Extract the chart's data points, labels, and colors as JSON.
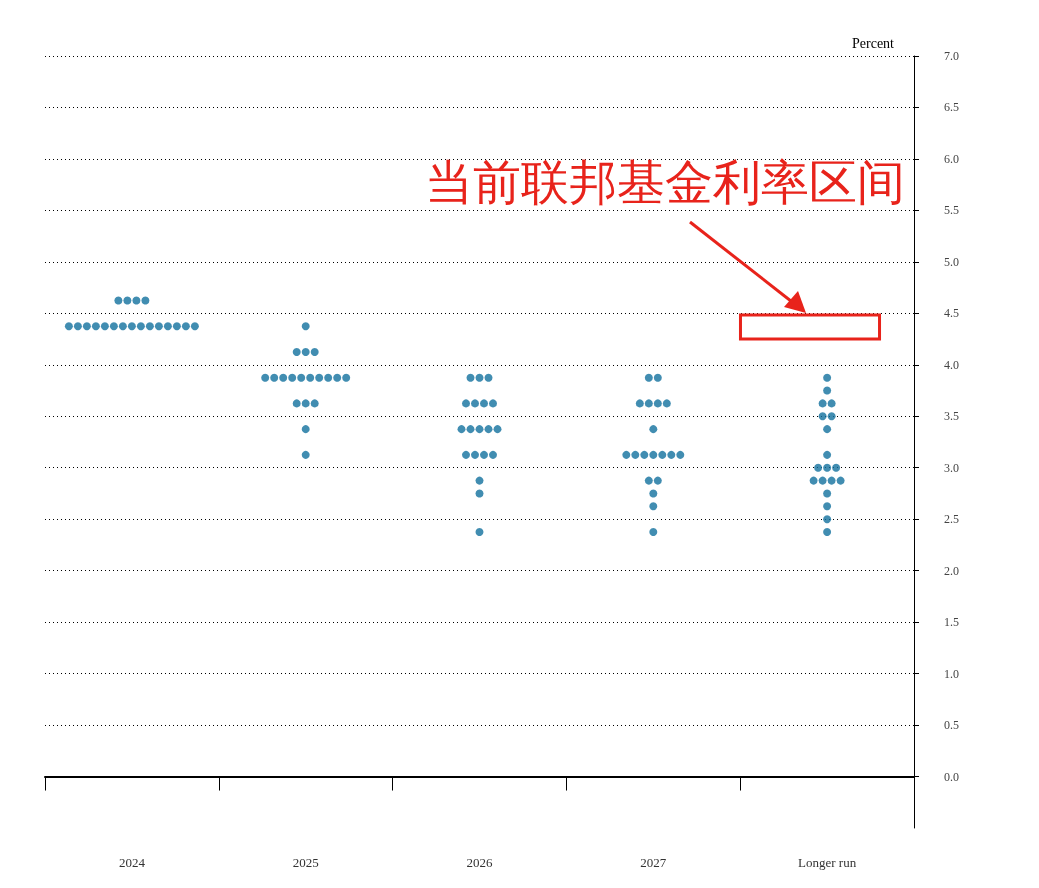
{
  "chart_data": {
    "type": "scatter",
    "ylabel": "Percent",
    "categories": [
      "2024",
      "2025",
      "2026",
      "2027",
      "Longer run"
    ],
    "series": [
      {
        "color": "#12719e",
        "values": [
          4.625,
          4.375,
          3.875,
          3.875,
          3.875
        ]
      },
      {
        "color": "#12719e",
        "values": [
          4.625,
          4.125,
          3.875,
          3.875,
          3.75
        ]
      },
      {
        "color": "#12719e",
        "values": [
          4.625,
          4.125,
          3.875,
          3.625,
          3.625
        ]
      },
      {
        "color": "#12719e",
        "values": [
          4.625,
          4.125,
          3.625,
          3.625,
          3.625
        ]
      },
      {
        "color": "#12719e",
        "values": [
          4.375,
          3.875,
          3.625,
          3.625,
          3.5
        ]
      },
      {
        "color": "#12719e",
        "values": [
          4.375,
          3.875,
          3.625,
          3.625,
          3.5
        ]
      },
      {
        "color": "#12719e",
        "values": [
          4.375,
          3.875,
          3.625,
          3.375,
          3.375
        ]
      },
      {
        "color": "#12719e",
        "values": [
          4.375,
          3.875,
          3.375,
          3.125,
          3.125
        ]
      },
      {
        "color": "#12719e",
        "values": [
          4.375,
          3.875,
          3.375,
          3.125,
          3
        ]
      },
      {
        "color": "#12719e",
        "values": [
          4.375,
          3.875,
          3.375,
          3.125,
          3
        ]
      },
      {
        "color": "#12719e",
        "values": [
          4.375,
          3.875,
          3.375,
          3.125,
          3
        ]
      },
      {
        "color": "#12719e",
        "values": [
          4.375,
          3.875,
          3.375,
          3.125,
          2.875
        ]
      },
      {
        "color": "#12719e",
        "values": [
          4.375,
          3.875,
          3.125,
          3.125,
          2.875
        ]
      },
      {
        "color": "#12719e",
        "values": [
          4.375,
          3.875,
          3.125,
          3.125,
          2.875
        ]
      },
      {
        "color": "#12719e",
        "values": [
          4.375,
          3.625,
          3.125,
          2.875,
          2.875
        ]
      },
      {
        "color": "#12719e",
        "values": [
          4.375,
          3.625,
          3.125,
          2.875,
          2.75
        ]
      },
      {
        "color": "#12719e",
        "values": [
          4.375,
          3.625,
          2.875,
          2.75,
          2.625
        ]
      },
      {
        "color": "#12719e",
        "values": [
          4.375,
          3.375,
          2.75,
          2.625,
          2.5
        ]
      },
      {
        "color": "#12719e",
        "values": [
          4.375,
          3.125,
          2.375,
          2.375,
          2.375
        ]
      }
    ],
    "ylim": [
      -0.5,
      7
    ],
    "yticks": [
      {
        "value": 0,
        "label": "0.0"
      },
      {
        "value": 0.5,
        "label": "0.5"
      },
      {
        "value": 1,
        "label": "1.0"
      },
      {
        "value": 1.5,
        "label": "1.5"
      },
      {
        "value": 2,
        "label": "2.0"
      },
      {
        "value": 2.5,
        "label": "2.5"
      },
      {
        "value": 3,
        "label": "3.0"
      },
      {
        "value": 3.5,
        "label": "3.5"
      },
      {
        "value": 4,
        "label": "4.0"
      },
      {
        "value": 4.5,
        "label": "4.5"
      },
      {
        "value": 5,
        "label": "5.0"
      },
      {
        "value": 5.5,
        "label": "5.5"
      },
      {
        "value": 6,
        "label": "6.0"
      },
      {
        "value": 6.5,
        "label": "6.5"
      },
      {
        "value": 7,
        "label": "7.0"
      }
    ],
    "grid": "y",
    "marker": "circle",
    "annotations": [
      "当前联邦基金利率区间"
    ]
  }
}
